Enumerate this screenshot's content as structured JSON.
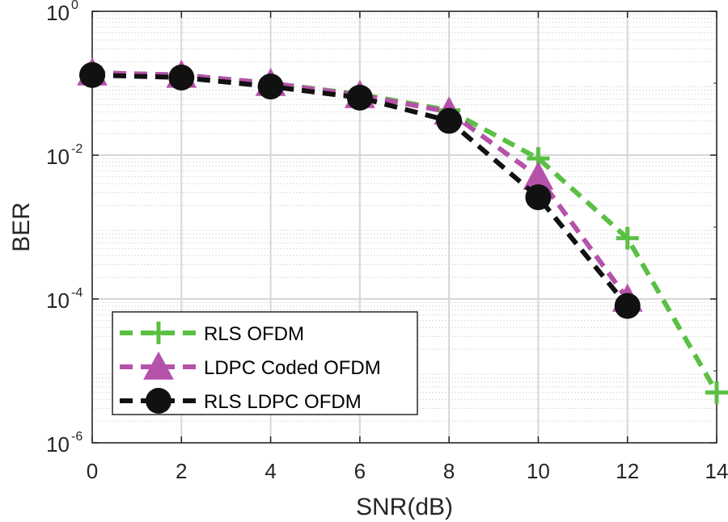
{
  "chart_data": {
    "type": "line",
    "y_scale": "log",
    "xlabel": "SNR(dB)",
    "ylabel": "BER",
    "xlim": [
      0,
      14
    ],
    "ylim": [
      1e-06,
      1
    ],
    "x_ticks": [
      0,
      2,
      4,
      6,
      8,
      10,
      12,
      14
    ],
    "x_tick_labels": [
      "0",
      "2",
      "4",
      "6",
      "8",
      "10",
      "12",
      "14"
    ],
    "y_ticks": [
      {
        "value": 1e-06,
        "base": "10",
        "exponent": "-6"
      },
      {
        "value": 0.0001,
        "base": "10",
        "exponent": "-4"
      },
      {
        "value": 0.01,
        "base": "10",
        "exponent": "-2"
      },
      {
        "value": 1,
        "base": "10",
        "exponent": "0"
      }
    ],
    "grid": true,
    "minor_grid": true,
    "legend_position": "bottom-left",
    "series": [
      {
        "name": "RLS OFDM",
        "color": "#5ac043",
        "marker": "plus",
        "x": [
          0,
          2,
          4,
          6,
          8,
          10,
          12,
          14
        ],
        "y": [
          0.14,
          0.13,
          0.1,
          0.07,
          0.042,
          0.009,
          0.0007,
          5e-06
        ]
      },
      {
        "name": "LDPC Coded OFDM",
        "color": "#b552aa",
        "marker": "triangle",
        "x": [
          0,
          2,
          4,
          6,
          8,
          10,
          12
        ],
        "y": [
          0.14,
          0.13,
          0.1,
          0.068,
          0.04,
          0.005,
          0.0001
        ]
      },
      {
        "name": "RLS LDPC OFDM",
        "color": "#111111",
        "marker": "circle",
        "x": [
          0,
          2,
          4,
          6,
          8,
          10,
          12
        ],
        "y": [
          0.13,
          0.12,
          0.09,
          0.063,
          0.03,
          0.0026,
          8e-05
        ]
      }
    ]
  }
}
